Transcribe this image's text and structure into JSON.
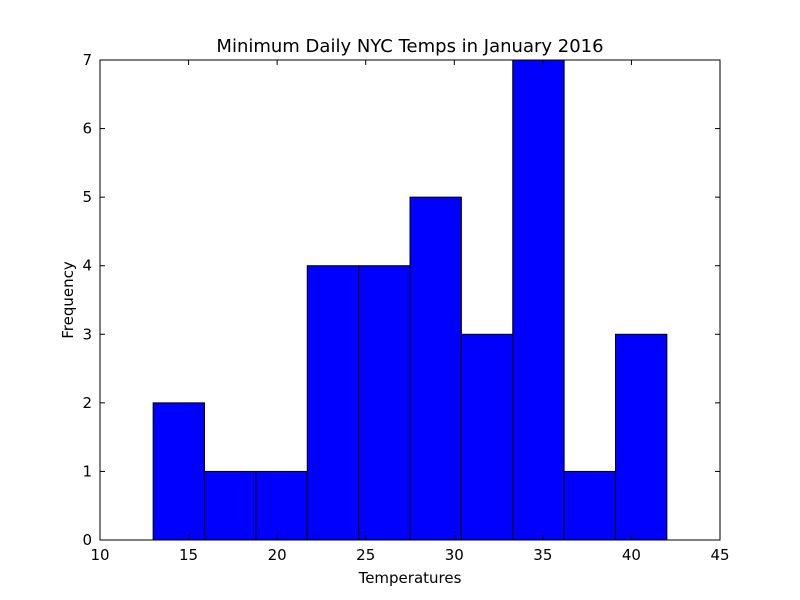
{
  "chart_data": {
    "type": "bar",
    "title": "Minimum Daily NYC Temps in January 2016",
    "xlabel": "Temperatures",
    "ylabel": "Frequency",
    "bin_edges": [
      13.0,
      15.9,
      18.8,
      21.7,
      24.6,
      27.5,
      30.4,
      33.3,
      36.2,
      39.1,
      42.0
    ],
    "values": [
      2,
      1,
      1,
      4,
      4,
      5,
      3,
      7,
      1,
      3
    ],
    "xlim": [
      10,
      45
    ],
    "ylim": [
      0,
      7
    ],
    "xticks": [
      10,
      15,
      20,
      25,
      30,
      35,
      40,
      45
    ],
    "yticks": [
      0,
      1,
      2,
      3,
      4,
      5,
      6,
      7
    ],
    "bar_color": "#0000ff",
    "edge_color": "#000000",
    "grid": false
  }
}
